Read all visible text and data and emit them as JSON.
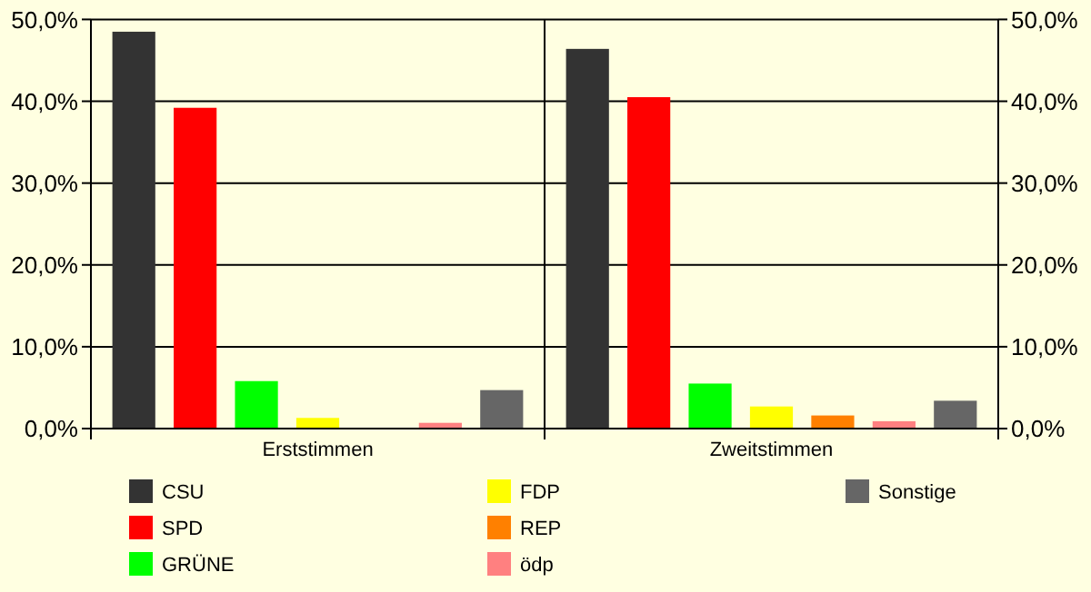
{
  "chart_data": {
    "type": "bar",
    "categories": [
      "Erststimmen",
      "Zweitstimmen"
    ],
    "series": [
      {
        "name": "CSU",
        "color": "#333333",
        "values": [
          48.5,
          46.4
        ]
      },
      {
        "name": "SPD",
        "color": "#ff0000",
        "values": [
          39.2,
          40.5
        ]
      },
      {
        "name": "GRÜNE",
        "color": "#00ff00",
        "values": [
          5.8,
          5.5
        ]
      },
      {
        "name": "FDP",
        "color": "#ffff00",
        "values": [
          1.3,
          2.7
        ]
      },
      {
        "name": "REP",
        "color": "#ff8000",
        "values": [
          null,
          1.6
        ]
      },
      {
        "name": "ödp",
        "color": "#ff8080",
        "values": [
          0.7,
          0.9
        ]
      },
      {
        "name": "Sonstige",
        "color": "#666666",
        "values": [
          4.7,
          3.4
        ]
      }
    ],
    "ylim": [
      0,
      50
    ],
    "yticks": [
      {
        "value": 0,
        "label": "0,0%"
      },
      {
        "value": 10,
        "label": "10,0%"
      },
      {
        "value": 20,
        "label": "20,0%"
      },
      {
        "value": 30,
        "label": "30,0%"
      },
      {
        "value": 40,
        "label": "40,0%"
      },
      {
        "value": 50,
        "label": "50,0%"
      }
    ],
    "y2lim": [
      0,
      50
    ],
    "y2ticks": [
      {
        "value": 0,
        "label": "0,0%"
      },
      {
        "value": 10,
        "label": "10,0%"
      },
      {
        "value": 20,
        "label": "20,0%"
      },
      {
        "value": 30,
        "label": "30,0%"
      },
      {
        "value": 40,
        "label": "40,0%"
      },
      {
        "value": 50,
        "label": "50,0%"
      }
    ],
    "grid": "y",
    "legend": "bottom"
  }
}
